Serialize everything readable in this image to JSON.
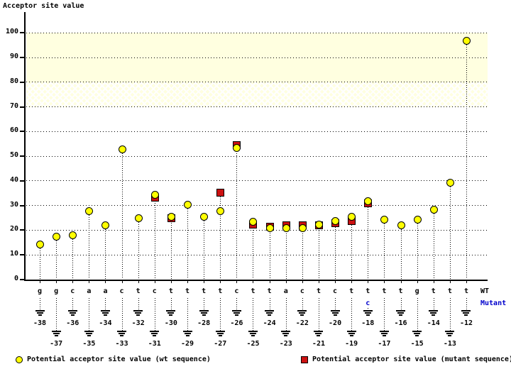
{
  "title": "Acceptor site value",
  "legend": {
    "wt": "Potential acceptor site value (wt sequence)",
    "mutant": "Potential acceptor site value (mutant sequence)"
  },
  "row_labels": {
    "wt": "WT",
    "mutant": "Mutant"
  },
  "colors": {
    "wt_marker": "#ffff00",
    "mutant_marker": "#cc1111",
    "band": "#ffffe0",
    "mutant_text": "#0000cc",
    "axis": "#000000"
  },
  "chart_data": {
    "type": "scatter",
    "title": "Acceptor site value",
    "ylabel": "Acceptor site value",
    "xlabel": "",
    "ylim": [
      0,
      100
    ],
    "yticks": [
      0,
      10,
      20,
      30,
      40,
      50,
      60,
      70,
      80,
      90,
      100
    ],
    "grid": "dotted",
    "legend_position": "bottom",
    "bands": [
      {
        "from": 80,
        "to": 100,
        "style": "solid"
      },
      {
        "from": 70,
        "to": 80,
        "style": "hatch"
      }
    ],
    "series": [
      {
        "name": "wt",
        "marker": "circle",
        "color": "#ffff00"
      },
      {
        "name": "mutant",
        "marker": "square",
        "color": "#cc1111"
      }
    ],
    "points": [
      {
        "pos": -38,
        "base": "g",
        "wt": 14.5
      },
      {
        "pos": -37,
        "base": "g",
        "wt": 17.5
      },
      {
        "pos": -36,
        "base": "c",
        "wt": 18
      },
      {
        "pos": -35,
        "base": "a",
        "wt": 28
      },
      {
        "pos": -34,
        "base": "a",
        "wt": 22
      },
      {
        "pos": -33,
        "base": "c",
        "wt": 53
      },
      {
        "pos": -32,
        "base": "t",
        "wt": 25
      },
      {
        "pos": -31,
        "base": "c",
        "wt": 34.5,
        "mut": 33.5
      },
      {
        "pos": -30,
        "base": "t",
        "wt": 25.5,
        "mut": 25
      },
      {
        "pos": -29,
        "base": "t",
        "wt": 30.5
      },
      {
        "pos": -28,
        "base": "t",
        "wt": 25.5
      },
      {
        "pos": -27,
        "base": "t",
        "wt": 28,
        "mut": 35.5
      },
      {
        "pos": -26,
        "base": "c",
        "wt": 53.5,
        "mut": 54.5
      },
      {
        "pos": -25,
        "base": "t",
        "wt": 23.5,
        "mut": 22.5
      },
      {
        "pos": -24,
        "base": "t",
        "wt": 21,
        "mut": 21.5
      },
      {
        "pos": -23,
        "base": "a",
        "wt": 21,
        "mut": 22
      },
      {
        "pos": -22,
        "base": "c",
        "wt": 21,
        "mut": 22
      },
      {
        "pos": -21,
        "base": "t",
        "wt": 22.5,
        "mut": 22
      },
      {
        "pos": -20,
        "base": "c",
        "wt": 24,
        "mut": 23
      },
      {
        "pos": -19,
        "base": "t",
        "wt": 25.5,
        "mut": 24
      },
      {
        "pos": -18,
        "base": "t",
        "mut_base": "c",
        "wt": 32,
        "mut": 31
      },
      {
        "pos": -17,
        "base": "t",
        "wt": 24.5
      },
      {
        "pos": -16,
        "base": "t",
        "wt": 22
      },
      {
        "pos": -15,
        "base": "g",
        "wt": 24.5
      },
      {
        "pos": -14,
        "base": "t",
        "wt": 28.5
      },
      {
        "pos": -13,
        "base": "t",
        "wt": 39.5
      },
      {
        "pos": -12,
        "base": "t",
        "wt": 97
      }
    ]
  }
}
